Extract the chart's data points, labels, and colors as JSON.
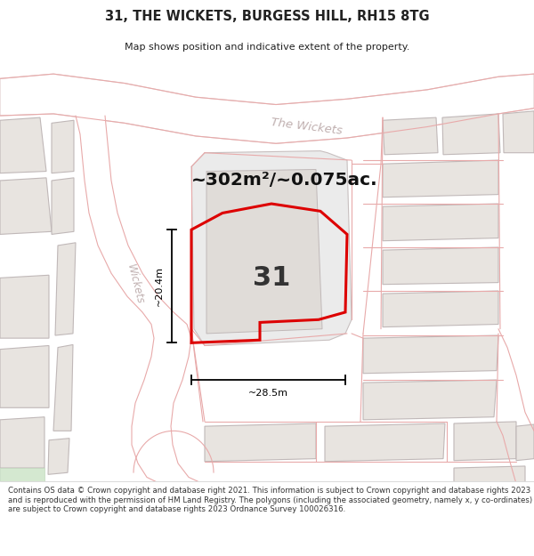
{
  "title": "31, THE WICKETS, BURGESS HILL, RH15 8TG",
  "subtitle": "Map shows position and indicative extent of the property.",
  "area_label": "~302m²/~0.075ac.",
  "plot_number": "31",
  "width_label": "~28.5m",
  "height_label": "~20.4m",
  "street_label_main": "The Wickets",
  "street_label_side": "Wickets",
  "footer": "Contains OS data © Crown copyright and database right 2021. This information is subject to Crown copyright and database rights 2023 and is reproduced with the permission of HM Land Registry. The polygons (including the associated geometry, namely x, y co-ordinates) are subject to Crown copyright and database rights 2023 Ordnance Survey 100026316.",
  "title_color": "#222222",
  "red_plot": "#dd0000",
  "building_fill": "#e8e4e0",
  "building_stroke": "#c0b8b8",
  "road_fill": "#f5f2f0",
  "pink": "#e8aaaa",
  "map_bg": "#f5f2f0"
}
